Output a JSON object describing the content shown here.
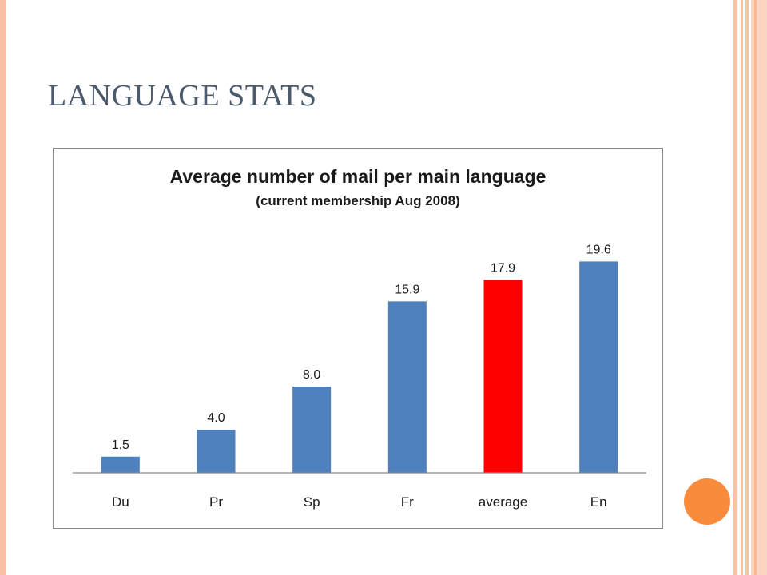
{
  "slide": {
    "title": "LANGUAGE STATS",
    "colors": {
      "accent_stripe": "#f7c2a6",
      "dot": "#f98b3d",
      "title": "#4c5a6e"
    }
  },
  "chart_data": {
    "type": "bar",
    "title": "Average number of mail per main language",
    "subtitle": "(current membership Aug 2008)",
    "categories": [
      "Du",
      "Pr",
      "Sp",
      "Fr",
      "average",
      "En"
    ],
    "values": [
      1.5,
      4.0,
      8.0,
      15.9,
      17.9,
      19.6
    ],
    "data_labels": [
      "1.5",
      "4.0",
      "8.0",
      "15.9",
      "17.9",
      "19.6"
    ],
    "colors": [
      "#4f81bd",
      "#4f81bd",
      "#4f81bd",
      "#4f81bd",
      "#ff0000",
      "#4f81bd"
    ],
    "ylim": [
      0,
      20
    ],
    "grid": false,
    "legend": "none",
    "xlabel": "",
    "ylabel": ""
  }
}
